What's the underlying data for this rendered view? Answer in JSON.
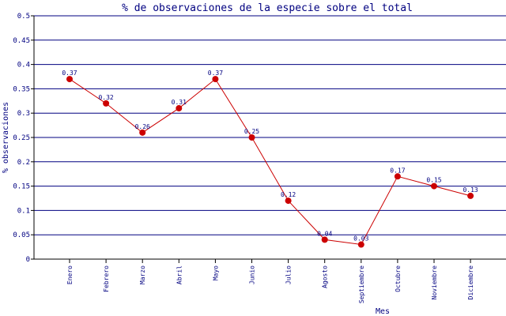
{
  "chart_data": {
    "type": "line",
    "title": "% de observaciones de la especie sobre el total",
    "xlabel": "Mes",
    "ylabel": "% observaciones",
    "ylim": [
      0,
      0.5
    ],
    "yticks": [
      "0",
      "0.05",
      "0.1",
      "0.15",
      "0.2",
      "0.25",
      "0.3",
      "0.35",
      "0.4",
      "0.45",
      "0.5"
    ],
    "categories": [
      "Enero",
      "Febrero",
      "Marzo",
      "Abril",
      "Mayo",
      "Junio",
      "Julio",
      "Agosto",
      "Septiembre",
      "Octubre",
      "Noviembre",
      "Diciembre"
    ],
    "values": [
      0.37,
      0.32,
      0.26,
      0.31,
      0.37,
      0.25,
      0.12,
      0.04,
      0.03,
      0.17,
      0.15,
      0.13
    ],
    "value_labels": [
      "0.37",
      "0.32",
      "0.26",
      "0.31",
      "0.37",
      "0.25",
      "0.12",
      "0.04",
      "0.03",
      "0.17",
      "0.15",
      "0.13"
    ],
    "grid": true,
    "colors": {
      "line": "#cc0000",
      "marker": "#cc0000",
      "grid": "#000080",
      "text": "#000080",
      "axis": "#000000"
    }
  }
}
